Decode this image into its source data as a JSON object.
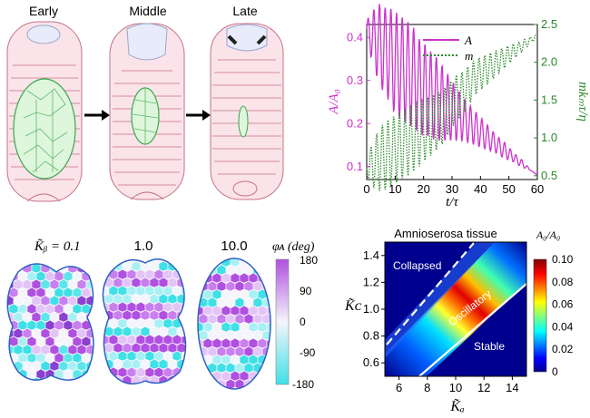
{
  "panel_a": {
    "stage_labels": [
      "Early",
      "Middle",
      "Late"
    ]
  },
  "panel_b": {
    "legend_A": "A",
    "legend_m": "m",
    "ylabel_left": "A/A₀",
    "ylabel_right": "mkₘτ/η",
    "xlabel": "t/τ"
  },
  "panel_c": {
    "labels": [
      "K̃ᵦ = 0.1",
      "1.0",
      "10.0"
    ],
    "colorbar_title": "φᴀ (deg)",
    "colorbar_ticks": [
      "180",
      "90",
      "0",
      "-90",
      "-180"
    ]
  },
  "panel_d": {
    "title": "Amnioserosa tissue",
    "region_labels": [
      "Collapsed",
      "Oscillatory",
      "Stable"
    ],
    "xlabel": "K̃ₐ",
    "ylabel": "K̃ᴄ",
    "colorbar_title": "A₀/A₀",
    "colorbar_ticks": [
      "0.10",
      "0.08",
      "0.06",
      "0.04",
      "0.02",
      "0"
    ]
  },
  "chart_data": [
    {
      "type": "line",
      "x": [
        0,
        2,
        4,
        6,
        8,
        10,
        12,
        14,
        16,
        18,
        20,
        22,
        24,
        26,
        28,
        30,
        32,
        34,
        36,
        38,
        40,
        42,
        44,
        46,
        48,
        50,
        52,
        54,
        56,
        58,
        60
      ],
      "x_ticks": [
        "0",
        "10",
        "20",
        "30",
        "40",
        "50",
        "60"
      ],
      "y_ticks_left": [
        "0.1",
        "0.2",
        "0.3",
        "0.4"
      ],
      "y_ticks_right": [
        "0.5",
        "1.0",
        "1.5",
        "2.0",
        "2.5"
      ],
      "xlim": [
        0,
        60
      ],
      "ylim_left": [
        0.07,
        0.43
      ],
      "ylim_right": [
        0.45,
        2.5
      ],
      "series": [
        {
          "name": "A",
          "axis": "left",
          "color": "#cc33cc",
          "style": "solid",
          "values": [
            0.42,
            0.4,
            0.39,
            0.37,
            0.36,
            0.34,
            0.33,
            0.32,
            0.31,
            0.29,
            0.28,
            0.27,
            0.26,
            0.25,
            0.24,
            0.23,
            0.22,
            0.21,
            0.2,
            0.19,
            0.18,
            0.17,
            0.16,
            0.15,
            0.14,
            0.13,
            0.12,
            0.11,
            0.1,
            0.09,
            0.08
          ],
          "oscillation_amplitude": [
            0.02,
            0.06,
            0.09,
            0.1,
            0.11,
            0.12,
            0.12,
            0.12,
            0.12,
            0.11,
            0.11,
            0.1,
            0.1,
            0.09,
            0.08,
            0.07,
            0.06,
            0.05,
            0.045,
            0.04,
            0.035,
            0.03,
            0.025,
            0.02,
            0.02,
            0.015,
            0.01,
            0.01,
            0.005,
            0.0,
            0.0
          ]
        },
        {
          "name": "m",
          "axis": "right",
          "color": "#2a8a2a",
          "style": "dotted",
          "values": [
            0.6,
            0.65,
            0.7,
            0.75,
            0.8,
            0.85,
            0.9,
            0.95,
            1.0,
            1.05,
            1.1,
            1.15,
            1.2,
            1.25,
            1.35,
            1.45,
            1.55,
            1.6,
            1.7,
            1.8,
            1.85,
            1.9,
            1.95,
            2.0,
            2.05,
            2.1,
            2.15,
            2.2,
            2.25,
            2.3,
            2.35
          ],
          "oscillation_amplitude": [
            0.1,
            0.3,
            0.4,
            0.45,
            0.45,
            0.45,
            0.45,
            0.45,
            0.45,
            0.45,
            0.42,
            0.4,
            0.38,
            0.36,
            0.34,
            0.32,
            0.3,
            0.28,
            0.26,
            0.24,
            0.22,
            0.2,
            0.18,
            0.16,
            0.14,
            0.12,
            0.1,
            0.08,
            0.06,
            0.04,
            0.02
          ]
        }
      ]
    },
    {
      "type": "heatmap",
      "title": "Amnioserosa tissue",
      "x_ticks": [
        "6",
        "8",
        "10",
        "12",
        "14"
      ],
      "y_ticks": [
        "0.6",
        "0.8",
        "1.0",
        "1.2",
        "1.4"
      ],
      "xlim": [
        5,
        15
      ],
      "ylim": [
        0.5,
        1.5
      ],
      "clim": [
        0,
        0.1
      ],
      "colormap": "jet"
    }
  ]
}
